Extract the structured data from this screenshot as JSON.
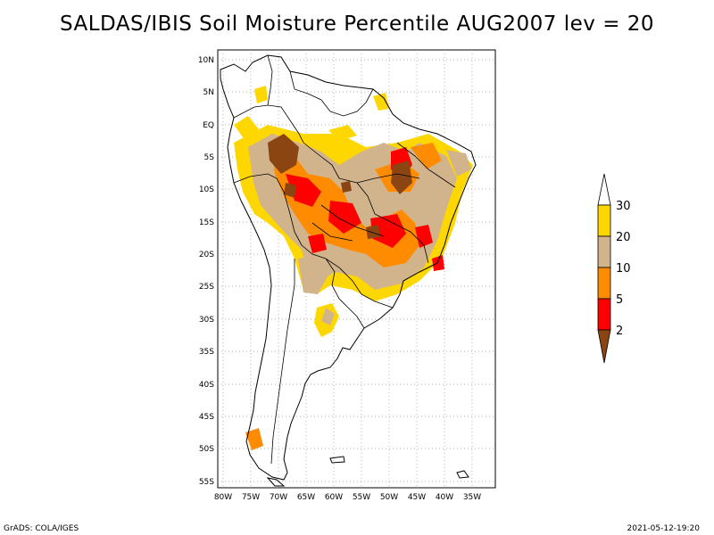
{
  "title": "SALDAS/IBIS Soil Moisture Percentile AUG2007 lev = 20",
  "footer": {
    "left": "GrADS: COLA/IGES",
    "right": "2021-05-12-19:20"
  },
  "axes": {
    "lat_labels": [
      "10N",
      "5N",
      "EQ",
      "5S",
      "10S",
      "15S",
      "20S",
      "25S",
      "30S",
      "35S",
      "40S",
      "45S",
      "50S",
      "55S"
    ],
    "lon_labels": [
      "80W",
      "75W",
      "70W",
      "65W",
      "60W",
      "55W",
      "50W",
      "45W",
      "40W",
      "35W"
    ]
  },
  "legend": {
    "labels": [
      "30",
      "20",
      "10",
      "5",
      "2"
    ],
    "colors": {
      "above30": "#ffffff",
      "p20_30": "#ffd700",
      "p10_20": "#d2b48c",
      "p5_10": "#ff8c00",
      "p2_5": "#ff0000",
      "below2": "#8b4513"
    }
  }
}
